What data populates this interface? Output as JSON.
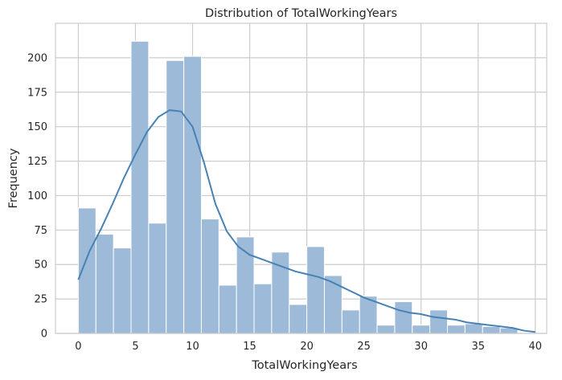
{
  "chart_data": {
    "type": "bar",
    "title": "Distribution of TotalWorkingYears",
    "xlabel": "TotalWorkingYears",
    "ylabel": "Frequency",
    "xlim": [
      -2,
      41
    ],
    "ylim": [
      0,
      225
    ],
    "xticks": [
      0,
      5,
      10,
      15,
      20,
      25,
      30,
      35,
      40
    ],
    "yticks": [
      0,
      25,
      50,
      75,
      100,
      125,
      150,
      175,
      200
    ],
    "grid": true,
    "bin_width": 1.5385,
    "bins_start": 0,
    "values": [
      91,
      72,
      62,
      212,
      80,
      198,
      201,
      83,
      35,
      70,
      36,
      59,
      21,
      63,
      42,
      17,
      27,
      6,
      23,
      6,
      17,
      6,
      7,
      5,
      4,
      0
    ],
    "kde": {
      "x": [
        0,
        1,
        2,
        3,
        4,
        5,
        6,
        7,
        8,
        9,
        10,
        11,
        12,
        13,
        14,
        15,
        16,
        17,
        18,
        19,
        20,
        21,
        22,
        23,
        24,
        25,
        26,
        27,
        28,
        29,
        30,
        31,
        32,
        33,
        34,
        35,
        36,
        37,
        38,
        39,
        40
      ],
      "y": [
        39,
        60,
        76,
        94,
        113,
        130,
        146,
        157,
        162,
        161,
        150,
        124,
        94,
        74,
        63,
        57,
        54,
        51,
        48,
        45,
        43,
        41,
        38,
        34,
        30,
        26,
        23,
        20,
        17,
        15,
        14,
        12,
        11,
        10,
        8,
        7,
        6,
        5,
        4,
        2,
        1
      ]
    },
    "colors": {
      "bars": "#9dbbd8",
      "kde": "#4682b4",
      "grid": "#cccccc"
    }
  }
}
